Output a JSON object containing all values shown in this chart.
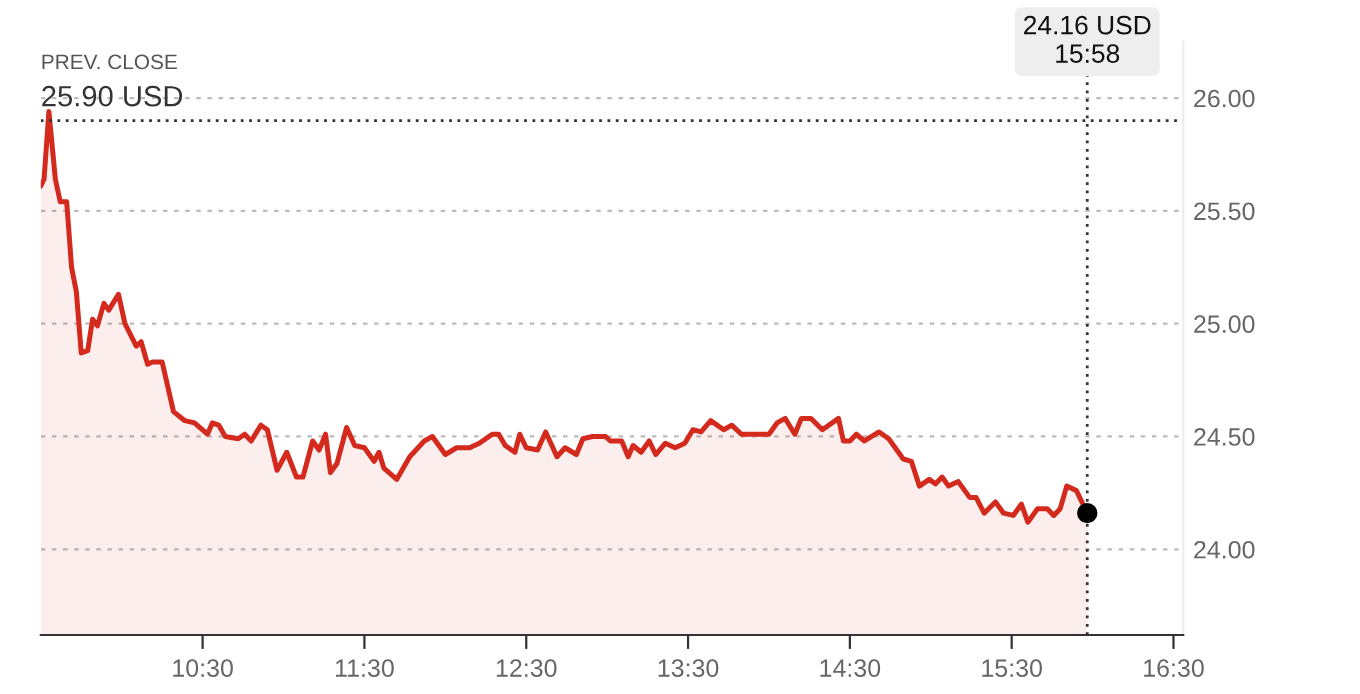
{
  "chart_data": {
    "type": "area",
    "xlim": [
      9.5,
      16.56
    ],
    "ylim": [
      23.62,
      26.25
    ],
    "xticks": [
      {
        "value": 10.5,
        "label": "10:30"
      },
      {
        "value": 11.5,
        "label": "11:30"
      },
      {
        "value": 12.5,
        "label": "12:30"
      },
      {
        "value": 13.5,
        "label": "13:30"
      },
      {
        "value": 14.5,
        "label": "14:30"
      },
      {
        "value": 15.5,
        "label": "15:30"
      },
      {
        "value": 16.5,
        "label": "16:30"
      }
    ],
    "yticks": [
      {
        "value": 24,
        "label": "24.00"
      },
      {
        "value": 24.5,
        "label": "24.50"
      },
      {
        "value": 25,
        "label": "25.00"
      },
      {
        "value": 25.5,
        "label": "25.50"
      },
      {
        "value": 26,
        "label": "26.00"
      }
    ],
    "grid": "y",
    "legend": false,
    "series": [
      {
        "color": "#d42a1e",
        "x": [
          9.5,
          9.52,
          9.55,
          9.59,
          9.62,
          9.66,
          9.69,
          9.72,
          9.75,
          9.79,
          9.82,
          9.85,
          9.89,
          9.92,
          9.98,
          10.02,
          10.09,
          10.12,
          10.16,
          10.19,
          10.25,
          10.32,
          10.39,
          10.45,
          10.53,
          10.56,
          10.6,
          10.64,
          10.72,
          10.76,
          10.8,
          10.86,
          10.9,
          10.96,
          11.02,
          11.08,
          11.12,
          11.18,
          11.22,
          11.26,
          11.29,
          11.33,
          11.39,
          11.44,
          11.5,
          11.56,
          11.59,
          11.62,
          11.7,
          11.78,
          11.87,
          11.92,
          12.0,
          12.07,
          12.15,
          12.21,
          12.29,
          12.33,
          12.37,
          12.43,
          12.46,
          12.5,
          12.57,
          12.62,
          12.69,
          12.74,
          12.81,
          12.85,
          12.91,
          12.99,
          13.02,
          13.09,
          13.13,
          13.16,
          13.21,
          13.26,
          13.3,
          13.36,
          13.42,
          13.48,
          13.53,
          13.58,
          13.64,
          13.72,
          13.77,
          13.83,
          14.0,
          14.05,
          14.1,
          14.16,
          14.2,
          14.26,
          14.33,
          14.43,
          14.46,
          14.5,
          14.54,
          14.59,
          14.68,
          14.74,
          14.83,
          14.88,
          14.93,
          14.99,
          15.03,
          15.07,
          15.11,
          15.17,
          15.24,
          15.28,
          15.33,
          15.4,
          15.45,
          15.51,
          15.56,
          15.6,
          15.66,
          15.72,
          15.76,
          15.8,
          15.84,
          15.9,
          15.967
        ],
        "values": [
          25.61,
          25.64,
          25.94,
          25.64,
          25.54,
          25.54,
          25.25,
          25.14,
          24.87,
          24.88,
          25.02,
          24.99,
          25.09,
          25.06,
          25.13,
          25.0,
          24.9,
          24.92,
          24.82,
          24.83,
          24.83,
          24.61,
          24.57,
          24.56,
          24.51,
          24.56,
          24.55,
          24.5,
          24.49,
          24.51,
          24.48,
          24.55,
          24.53,
          24.35,
          24.43,
          24.32,
          24.32,
          24.48,
          24.44,
          24.51,
          24.34,
          24.38,
          24.54,
          24.46,
          24.45,
          24.39,
          24.43,
          24.36,
          24.31,
          24.41,
          24.48,
          24.5,
          24.42,
          24.45,
          24.45,
          24.47,
          24.51,
          24.51,
          24.46,
          24.43,
          24.51,
          24.45,
          24.44,
          24.52,
          24.41,
          24.45,
          24.42,
          24.49,
          24.5,
          24.5,
          24.48,
          24.48,
          24.41,
          24.46,
          24.43,
          24.48,
          24.42,
          24.47,
          24.45,
          24.47,
          24.53,
          24.52,
          24.57,
          24.53,
          24.55,
          24.51,
          24.51,
          24.56,
          24.58,
          24.51,
          24.58,
          24.58,
          24.53,
          24.58,
          24.48,
          24.48,
          24.51,
          24.48,
          24.52,
          24.49,
          24.4,
          24.39,
          24.28,
          24.31,
          24.29,
          24.32,
          24.28,
          24.3,
          24.23,
          24.23,
          24.16,
          24.21,
          24.16,
          24.15,
          24.2,
          24.12,
          24.18,
          24.18,
          24.15,
          24.18,
          24.28,
          24.26,
          24.16
        ]
      },
      {
        "type": "scatter",
        "color": "#000000",
        "marker": "circle",
        "x": [
          15.967
        ],
        "values": [
          24.16
        ]
      }
    ],
    "ref_lines": [
      {
        "axis": "y",
        "value": 25.9,
        "label": "25.90 USD",
        "color": "#333333",
        "line_style": "dotted"
      },
      {
        "axis": "x",
        "value": 15.967,
        "color": "#333333",
        "line_style": "dotted"
      }
    ],
    "annotations": [
      "PREV. CLOSE",
      "24.16 USD\n15:58"
    ]
  }
}
